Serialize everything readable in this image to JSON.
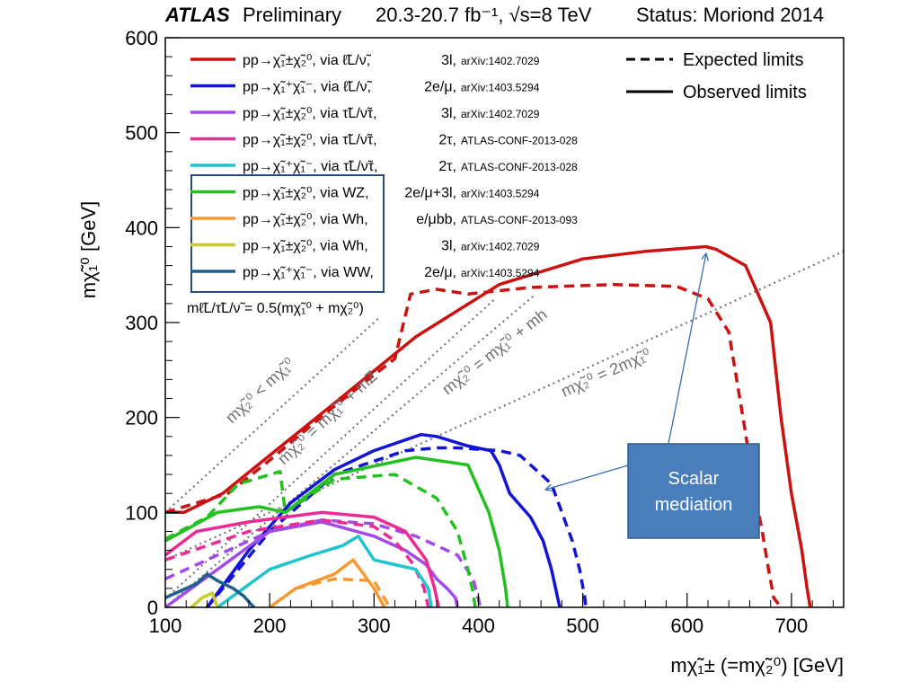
{
  "header": {
    "experiment": "ATLAS",
    "preliminary": "Preliminary",
    "lumi": "20.3-20.7 fb⁻¹, √s=8 TeV",
    "status": "Status: Moriond 2014"
  },
  "colors": {
    "red": "#cc1111",
    "blue": "#1414d6",
    "purple": "#a24be8",
    "magenta": "#ec2a94",
    "cyan": "#1fc4cc",
    "green": "#22c11f",
    "orange": "#f59a33",
    "olive": "#c7cc2a",
    "teal": "#1f5f8c",
    "diagonal": "#777777",
    "callout_fill": "#4a7dbb",
    "callout_border": "#2f5d93"
  },
  "legend": {
    "entries": [
      {
        "process": "pp→χ̃₁±χ̃₂⁰, via ℓ̃L/ν̃,",
        "channel": "3l,",
        "ref": "arXiv:1402.7029",
        "color": "red"
      },
      {
        "process": "pp→χ̃₁⁺χ̃₁⁻, via ℓ̃L/ν̃,",
        "channel": "2e/μ,",
        "ref": "arXiv:1403.5294",
        "color": "blue"
      },
      {
        "process": "pp→χ̃₁±χ̃₂⁰, via τ̃L/ν̃τ,",
        "channel": "3l,",
        "ref": "arXiv:1402.7029",
        "color": "purple"
      },
      {
        "process": "pp→χ̃₁±χ̃₂⁰, via τ̃L/ν̃τ,",
        "channel": "2τ,",
        "ref": "ATLAS-CONF-2013-028",
        "color": "magenta"
      },
      {
        "process": "pp→χ̃₁⁺χ̃₁⁻, via τ̃L/ν̃τ,",
        "channel": "2τ,",
        "ref": "ATLAS-CONF-2013-028",
        "color": "cyan"
      },
      {
        "process": "pp→χ̃₁±χ̃₂⁰, via WZ,",
        "channel": "2e/μ+3l,",
        "ref": "arXiv:1403.5294",
        "color": "green"
      },
      {
        "process": "pp→χ̃₁±χ̃₂⁰, via Wh,",
        "channel": "e/μbb,",
        "ref": "ATLAS-CONF-2013-093",
        "color": "orange"
      },
      {
        "process": "pp→χ̃₁±χ̃₂⁰, via Wh,",
        "channel": "3l,",
        "ref": "arXiv:1402.7029",
        "color": "olive"
      },
      {
        "process": "pp→χ̃₁⁺χ̃₁⁻, via WW,",
        "channel": "2e/μ,",
        "ref": "arXiv:1403.5294",
        "color": "teal"
      }
    ],
    "style_key": {
      "expected": "Expected limits",
      "observed": "Observed limits"
    },
    "mass_note": "mℓ̃L/τ̃L/ν̃ = 0.5(mχ̃₁⁰ + mχ̃₂⁰)"
  },
  "annotations": {
    "diag_lt": "mχ̃₂⁰ < mχ̃₁⁰",
    "diag_mz": "mχ̃₂⁰ = mχ̃₁⁰ + mZ",
    "diag_mh": "mχ̃₂⁰ = mχ̃₁⁰ + mh",
    "diag_2m": "mχ̃₂⁰ = 2mχ̃₁⁰",
    "callout": [
      "Scalar",
      "mediation"
    ]
  },
  "chart_data": {
    "type": "line",
    "title": "",
    "xlabel": "mχ̃₁± (=mχ̃₂⁰) [GeV]",
    "ylabel": "mχ̃₁⁰ [GeV]",
    "xlim": [
      100,
      750
    ],
    "ylim": [
      0,
      600
    ],
    "xticks": [
      100,
      200,
      300,
      400,
      500,
      600,
      700
    ],
    "yticks": [
      0,
      100,
      200,
      300,
      400,
      500,
      600
    ],
    "grid": false,
    "legend_position": "top-left",
    "diagonals": [
      {
        "key": "diag_lt",
        "offset": 0,
        "factor": 1,
        "x_end": 306
      },
      {
        "key": "diag_mz",
        "offset": 91,
        "factor": 1,
        "x_end": 416
      },
      {
        "key": "diag_mh",
        "offset": 125,
        "factor": 1,
        "x_end": 455
      },
      {
        "key": "diag_2m",
        "offset": 0,
        "factor": 2,
        "x_end": 750
      }
    ],
    "series": [
      {
        "color": "red",
        "style": "observed",
        "x": [
          100,
          118,
          155,
          200,
          262,
          340,
          420,
          500,
          560,
          618,
          628,
          656,
          680,
          690,
          700,
          710,
          715,
          718
        ],
        "y": [
          100,
          100,
          120,
          160,
          215,
          285,
          340,
          367,
          375,
          380,
          377,
          360,
          300,
          200,
          120,
          60,
          20,
          0
        ]
      },
      {
        "color": "red",
        "style": "expected",
        "x": [
          100,
          160,
          200,
          262,
          320,
          335,
          360,
          390,
          450,
          530,
          590,
          620,
          640,
          655,
          665,
          672,
          678,
          683,
          690
        ],
        "y": [
          100,
          120,
          155,
          212,
          262,
          330,
          335,
          330,
          337,
          340,
          338,
          325,
          290,
          190,
          120,
          80,
          40,
          10,
          0
        ]
      },
      {
        "color": "blue",
        "style": "observed",
        "x": [
          140,
          180,
          220,
          262,
          300,
          345,
          360,
          390,
          412,
          420,
          430,
          450,
          462,
          470,
          476,
          478
        ],
        "y": [
          0,
          60,
          110,
          145,
          165,
          182,
          180,
          170,
          165,
          150,
          120,
          95,
          70,
          40,
          10,
          0
        ]
      },
      {
        "color": "blue",
        "style": "expected",
        "x": [
          140,
          200,
          262,
          330,
          360,
          380,
          420,
          440,
          470,
          480,
          490,
          497,
          502,
          503
        ],
        "y": [
          0,
          80,
          140,
          165,
          168,
          168,
          165,
          160,
          130,
          100,
          70,
          40,
          10,
          0
        ]
      },
      {
        "color": "purple",
        "style": "observed",
        "x": [
          100,
          200,
          250,
          300,
          330,
          350,
          360,
          370,
          378,
          380
        ],
        "y": [
          0,
          80,
          90,
          75,
          60,
          45,
          30,
          20,
          10,
          0
        ]
      },
      {
        "color": "purple",
        "style": "expected",
        "x": [
          100,
          200,
          250,
          300,
          340,
          360,
          380,
          395,
          402
        ],
        "y": [
          30,
          80,
          92,
          88,
          75,
          65,
          55,
          30,
          0
        ]
      },
      {
        "color": "magenta",
        "style": "observed",
        "x": [
          100,
          130,
          180,
          250,
          300,
          330,
          350,
          358,
          362
        ],
        "y": [
          55,
          80,
          90,
          100,
          95,
          80,
          50,
          20,
          0
        ]
      },
      {
        "color": "magenta",
        "style": "expected",
        "x": [
          100,
          180,
          250,
          300,
          320,
          338,
          348,
          352
        ],
        "y": [
          50,
          80,
          92,
          85,
          70,
          45,
          20,
          0
        ]
      },
      {
        "color": "cyan",
        "style": "observed",
        "x": [
          150,
          200,
          240,
          270,
          285,
          300,
          320,
          340,
          352,
          355
        ],
        "y": [
          0,
          40,
          55,
          65,
          75,
          50,
          45,
          40,
          20,
          0
        ]
      },
      {
        "color": "green",
        "style": "observed",
        "x": [
          100,
          150,
          190,
          215,
          262,
          340,
          390,
          410,
          420,
          426,
          428
        ],
        "y": [
          70,
          100,
          106,
          100,
          140,
          158,
          150,
          100,
          60,
          20,
          0
        ]
      },
      {
        "color": "green",
        "style": "expected",
        "x": [
          100,
          140,
          170,
          210,
          215,
          262,
          320,
          360,
          380,
          390,
          395,
          397
        ],
        "y": [
          72,
          95,
          130,
          143,
          100,
          135,
          140,
          115,
          80,
          40,
          15,
          0
        ]
      },
      {
        "color": "orange",
        "style": "observed",
        "x": [
          200,
          225,
          262,
          280,
          290,
          300,
          310
        ],
        "y": [
          0,
          20,
          35,
          50,
          35,
          20,
          0
        ]
      },
      {
        "color": "orange",
        "style": "expected",
        "x": [
          225,
          262,
          300,
          315
        ],
        "y": [
          20,
          30,
          28,
          0
        ]
      },
      {
        "color": "olive",
        "style": "observed",
        "x": [
          125,
          135,
          145,
          150
        ],
        "y": [
          0,
          10,
          15,
          0
        ]
      },
      {
        "color": "teal",
        "style": "observed",
        "x": [
          100,
          130,
          140,
          150,
          165,
          175,
          185
        ],
        "y": [
          10,
          25,
          35,
          28,
          20,
          12,
          0
        ]
      }
    ]
  }
}
